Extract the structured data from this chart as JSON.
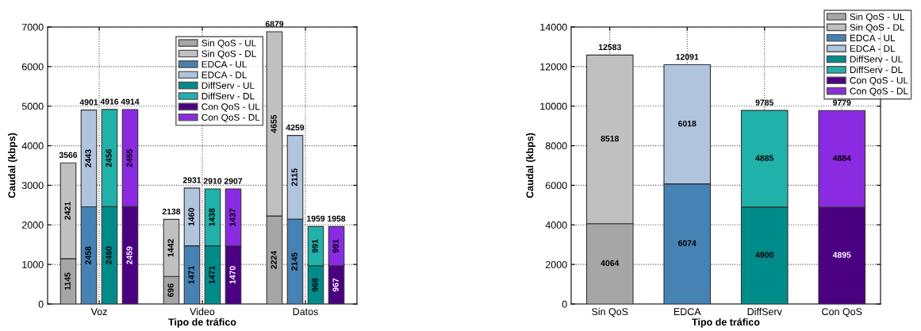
{
  "chart_data": [
    {
      "type": "bar",
      "stacked": true,
      "data_labels": true,
      "grid": true,
      "legend": "top",
      "xlabel": "Tipo de tráfico",
      "ylabel": "Caudal (kbps)",
      "categories": [
        null,
        null,
        null,
        "Voz",
        null,
        null,
        null,
        null,
        null,
        null,
        null,
        null,
        null,
        "Video",
        null,
        null,
        null,
        null,
        null,
        null,
        null,
        null,
        null,
        "Datos",
        null,
        null,
        null
      ],
      "ylim": [
        0,
        7000
      ],
      "yticks": [
        0,
        1000,
        2000,
        3000,
        4000,
        5000,
        6000,
        7000
      ],
      "series": [
        {
          "name": "Sin QoS - UL",
          "color": "#a6a6a6",
          "values": [
            1145,
            null,
            null,
            null,
            null,
            null,
            null,
            null,
            null,
            null,
            696,
            null,
            null,
            null,
            null,
            null,
            null,
            null,
            null,
            null,
            2224,
            null,
            null,
            null,
            null,
            null,
            null
          ]
        },
        {
          "name": "Sin QoS - DL",
          "color": "#c0c0c0",
          "values": [
            2421,
            null,
            null,
            null,
            null,
            null,
            null,
            null,
            null,
            null,
            1442,
            null,
            null,
            null,
            null,
            null,
            null,
            null,
            null,
            null,
            4655,
            null,
            null,
            null,
            null,
            null,
            null
          ]
        },
        {
          "name": "EDCA - UL",
          "color": "#4682b4",
          "values": [
            null,
            null,
            2458,
            null,
            null,
            null,
            null,
            null,
            null,
            null,
            null,
            null,
            1471,
            null,
            null,
            null,
            null,
            null,
            null,
            null,
            null,
            null,
            2145,
            null,
            null,
            null,
            null
          ]
        },
        {
          "name": "EDCA - DL",
          "color": "#b0c4de",
          "values": [
            null,
            null,
            2443,
            null,
            null,
            null,
            null,
            null,
            null,
            null,
            null,
            null,
            1460,
            null,
            null,
            null,
            null,
            null,
            null,
            null,
            null,
            null,
            2115,
            null,
            null,
            null,
            null
          ]
        },
        {
          "name": "DiffServ - UL",
          "color": "#008b8b",
          "values": [
            null,
            null,
            null,
            null,
            2460,
            null,
            null,
            null,
            null,
            null,
            null,
            null,
            null,
            null,
            1471,
            null,
            null,
            null,
            null,
            null,
            null,
            null,
            null,
            null,
            968,
            null,
            null
          ]
        },
        {
          "name": "DiffServ - DL",
          "color": "#20b2aa",
          "values": [
            null,
            null,
            null,
            null,
            2456,
            null,
            null,
            null,
            null,
            null,
            null,
            null,
            null,
            null,
            1438,
            null,
            null,
            null,
            null,
            null,
            null,
            null,
            null,
            null,
            991,
            null,
            null
          ]
        },
        {
          "name": "Con QoS - UL",
          "color": "#4b0082",
          "values": [
            null,
            null,
            null,
            null,
            null,
            null,
            2459,
            null,
            null,
            null,
            null,
            null,
            null,
            null,
            null,
            null,
            1470,
            null,
            null,
            null,
            null,
            null,
            null,
            null,
            null,
            null,
            967
          ]
        },
        {
          "name": "Con QoS - DL",
          "color": "#8a2be2",
          "values": [
            null,
            null,
            null,
            null,
            null,
            null,
            2455,
            null,
            null,
            null,
            null,
            null,
            null,
            null,
            null,
            null,
            1437,
            null,
            null,
            null,
            null,
            null,
            null,
            null,
            null,
            null,
            991
          ]
        }
      ],
      "totals": [
        "3566",
        null,
        "4901",
        null,
        "4916",
        null,
        "4914",
        null,
        null,
        null,
        "2138",
        null,
        "2931",
        null,
        "2910",
        null,
        "2907",
        null,
        null,
        null,
        "6879",
        null,
        "4259",
        null,
        "1959",
        null,
        "1958"
      ]
    },
    {
      "type": "bar",
      "stacked": true,
      "data_labels": true,
      "grid": true,
      "legend": "top right",
      "xlabel": "Tipo de tráfico",
      "ylabel": "Caudal (kbps)",
      "categories": [
        "Sin QoS",
        "EDCA",
        "DiffServ",
        "Con QoS"
      ],
      "ylim": [
        0,
        14000
      ],
      "yticks": [
        0,
        2000,
        4000,
        6000,
        8000,
        10000,
        12000,
        14000
      ],
      "series": [
        {
          "name": "Sin QoS - UL",
          "color": "#a6a6a6",
          "values": [
            4064,
            null,
            null,
            null
          ]
        },
        {
          "name": "Sin QoS - DL",
          "color": "#c0c0c0",
          "values": [
            8518,
            null,
            null,
            null
          ]
        },
        {
          "name": "EDCA - UL",
          "color": "#4682b4",
          "values": [
            null,
            6074,
            null,
            null
          ]
        },
        {
          "name": "EDCA - DL",
          "color": "#b0c4de",
          "values": [
            null,
            6018,
            null,
            null
          ]
        },
        {
          "name": "DiffServ - UL",
          "color": "#008b8b",
          "values": [
            null,
            null,
            4900,
            null
          ]
        },
        {
          "name": "DiffServ - DL",
          "color": "#20b2aa",
          "values": [
            null,
            null,
            4885,
            null
          ]
        },
        {
          "name": "Con QoS - UL",
          "color": "#4b0082",
          "values": [
            null,
            null,
            null,
            4895
          ]
        },
        {
          "name": "Con QoS - DL",
          "color": "#8a2be2",
          "values": [
            null,
            null,
            null,
            4884
          ]
        }
      ],
      "totals": [
        "12583",
        "12091",
        "9785",
        "9779"
      ]
    }
  ]
}
